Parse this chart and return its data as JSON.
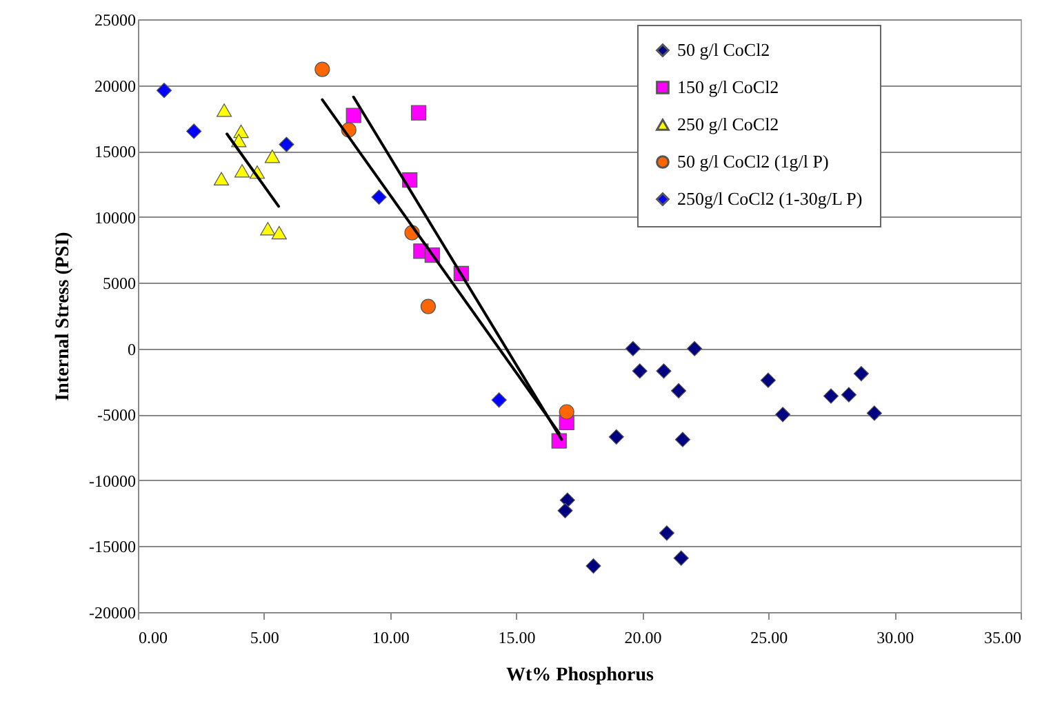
{
  "chart_data": {
    "type": "scatter",
    "xlabel": "Wt% Phosphorus",
    "ylabel": "Internal Stress (PSI)",
    "xlim": [
      0,
      35
    ],
    "xticks": [
      {
        "value": 0,
        "label": "0.00"
      },
      {
        "value": 5,
        "label": "5.00"
      },
      {
        "value": 10,
        "label": "10.00"
      },
      {
        "value": 15,
        "label": "15.00"
      },
      {
        "value": 20,
        "label": "20.00"
      },
      {
        "value": 25,
        "label": "25.00"
      },
      {
        "value": 30,
        "label": "30.00"
      },
      {
        "value": 35,
        "label": "35.00"
      }
    ],
    "ylim": [
      -20000,
      25000
    ],
    "yticks": [
      -20000,
      -15000,
      -10000,
      -5000,
      0,
      5000,
      10000,
      15000,
      20000,
      25000
    ],
    "grid": "y",
    "legend": "top right",
    "series": [
      {
        "name": "50 g/l CoCl2",
        "color": "#000080",
        "marker": "diamond",
        "x": [
          19.63,
          22.07,
          19.9,
          20.85,
          21.44,
          24.99,
          25.57,
          27.48,
          28.19,
          28.68,
          29.2,
          18.97,
          21.6,
          17.03,
          16.94,
          20.97,
          21.54,
          18.06
        ],
        "values": [
          0,
          0,
          -1700,
          -1700,
          -3200,
          -2400,
          -5000,
          -3600,
          -3500,
          -1900,
          -4900,
          -6700,
          -6900,
          -11500,
          -12300,
          -14000,
          -15900,
          -16500
        ]
      },
      {
        "name": "150 g/l CoCl2",
        "color": "#ff00ff",
        "marker": "square",
        "x": [
          8.55,
          11.13,
          10.78,
          11.22,
          11.67,
          12.82,
          16.7,
          17.0
        ],
        "values": [
          17700,
          17900,
          12800,
          7400,
          7100,
          5700,
          -7000,
          -5600
        ]
      },
      {
        "name": "250 g/l CoCl2",
        "color": "#ffff00",
        "marker": "triangle",
        "x": [
          3.42,
          4.09,
          4.0,
          3.31,
          4.13,
          4.73,
          5.33,
          5.15,
          5.6
        ],
        "values": [
          18100,
          16500,
          15800,
          12900,
          13500,
          13400,
          14600,
          9100,
          8800
        ]
      },
      {
        "name": "50 g/l CoCl2 (1g/l P)",
        "color": "#ff6600",
        "marker": "circle",
        "x": [
          7.31,
          8.36,
          10.87,
          11.51,
          17.0
        ],
        "values": [
          21200,
          16600,
          8800,
          3200,
          -4800
        ]
      },
      {
        "name": "250g/l CoCl2 (1-30g/L P)",
        "color": "#0000ff",
        "marker": "diamond",
        "x": [
          1.04,
          2.22,
          5.89,
          9.56,
          14.32
        ],
        "values": [
          19600,
          16500,
          15500,
          11500,
          -3900
        ]
      },
      {
        "type": "line",
        "color": "#000000",
        "x": [
          3.53,
          5.58
        ],
        "values": [
          16300,
          10800
        ]
      },
      {
        "type": "line",
        "color": "#000000",
        "x": [
          7.31,
          16.7
        ],
        "values": [
          18900,
          -6400
        ]
      },
      {
        "type": "line",
        "color": "#000000",
        "x": [
          8.55,
          16.8
        ],
        "values": [
          19100,
          -6900
        ]
      }
    ]
  }
}
